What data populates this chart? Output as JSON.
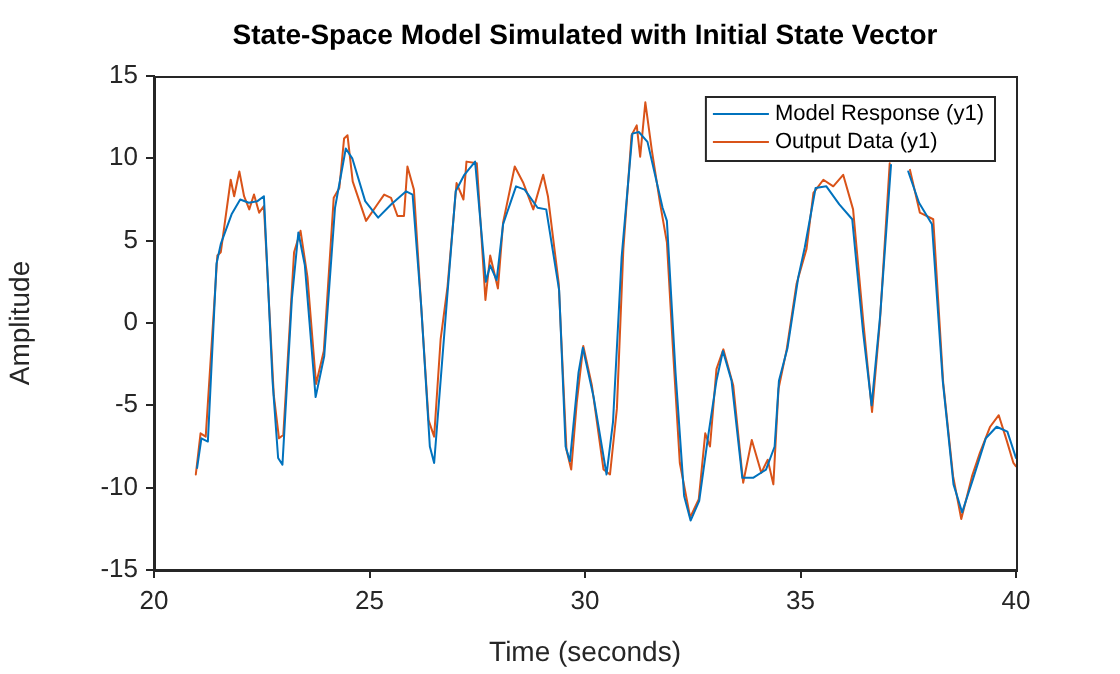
{
  "chart_data": {
    "type": "line",
    "title": "State-Space Model Simulated with Initial State Vector",
    "xlabel": "Time (seconds)",
    "ylabel": "Amplitude",
    "xlim": [
      20,
      40
    ],
    "xticks": [
      20,
      25,
      30,
      35,
      40
    ],
    "ylim": [
      -15,
      15
    ],
    "yticks": [
      -15,
      -10,
      -5,
      0,
      5,
      10,
      15
    ],
    "grid": false,
    "legend": "top right",
    "marker": "none",
    "line_style": "solid",
    "series": [
      {
        "name": "Model Response (y1)",
        "color": "#0072bd",
        "x": [
          21.0,
          21.1,
          21.25,
          21.45,
          21.55,
          21.8,
          22.0,
          22.2,
          22.4,
          22.55,
          22.75,
          22.88,
          22.98,
          23.2,
          23.35,
          23.5,
          23.75,
          23.95,
          24.2,
          24.45,
          24.6,
          24.9,
          25.2,
          25.5,
          25.85,
          26.0,
          26.2,
          26.4,
          26.5,
          26.8,
          27.0,
          27.2,
          27.45,
          27.7,
          27.8,
          27.95,
          28.1,
          28.4,
          28.6,
          28.9,
          29.1,
          29.4,
          29.55,
          29.65,
          29.85,
          29.95,
          30.2,
          30.5,
          30.65,
          30.85,
          31.1,
          31.25,
          31.45,
          31.8,
          31.9,
          32.1,
          32.3,
          32.45,
          32.65,
          32.85,
          33.05,
          33.2,
          33.4,
          33.65,
          33.9,
          34.2,
          34.4,
          34.5,
          34.7,
          34.95,
          35.1,
          35.35,
          35.6,
          35.9,
          36.2,
          36.45,
          36.65,
          36.85,
          37.1,
          37.3,
          37.5,
          37.75,
          38.05,
          38.3,
          38.55,
          38.75,
          39.0,
          39.3,
          39.55,
          39.8,
          40.0
        ],
        "values": [
          -8.8,
          -7.0,
          -7.2,
          3.6,
          4.8,
          6.6,
          7.5,
          7.3,
          7.4,
          7.7,
          -3.5,
          -8.2,
          -8.6,
          1.5,
          5.5,
          3.5,
          -4.5,
          -2.0,
          7.0,
          10.6,
          10.0,
          7.4,
          6.4,
          7.2,
          8.0,
          7.8,
          1.0,
          -7.5,
          -8.5,
          1.5,
          8.0,
          9.0,
          9.8,
          2.5,
          3.5,
          2.6,
          6.0,
          8.3,
          8.1,
          7.0,
          6.9,
          2.0,
          -7.5,
          -8.4,
          -3.0,
          -1.5,
          -4.5,
          -9.2,
          -6.0,
          4.0,
          11.5,
          11.6,
          11.0,
          7.0,
          6.2,
          -3.0,
          -10.5,
          -12.0,
          -10.8,
          -7.0,
          -3.5,
          -1.7,
          -3.5,
          -9.4,
          -9.4,
          -8.9,
          -7.5,
          -3.5,
          -1.5,
          2.8,
          4.6,
          8.2,
          8.3,
          7.2,
          6.3,
          -0.5,
          -5.0,
          0.5,
          9.6,
          null,
          9.2,
          7.3,
          6.0,
          -3.5,
          -9.8,
          -11.5,
          -9.5,
          -7.0,
          -6.3,
          -6.6,
          -8.2
        ]
      },
      {
        "name": "Output Data (y1)",
        "color": "#d95319",
        "x": [
          20.97,
          21.08,
          21.2,
          21.47,
          21.55,
          21.78,
          21.86,
          21.98,
          22.09,
          22.21,
          22.32,
          22.44,
          22.55,
          22.78,
          22.9,
          23.0,
          23.25,
          23.4,
          23.56,
          23.76,
          23.94,
          24.17,
          24.3,
          24.41,
          24.49,
          24.61,
          24.92,
          25.18,
          25.34,
          25.5,
          25.65,
          25.8,
          25.88,
          26.03,
          26.19,
          26.37,
          26.5,
          26.65,
          26.81,
          27.02,
          27.18,
          27.25,
          27.49,
          27.69,
          27.8,
          27.98,
          28.1,
          28.37,
          28.57,
          28.8,
          29.03,
          29.14,
          29.39,
          29.57,
          29.68,
          29.81,
          29.96,
          30.16,
          30.43,
          30.58,
          30.74,
          30.89,
          31.08,
          31.2,
          31.28,
          31.4,
          31.55,
          31.74,
          31.9,
          32.05,
          32.2,
          32.44,
          32.64,
          32.79,
          32.9,
          33.05,
          33.21,
          33.44,
          33.67,
          33.87,
          34.09,
          34.24,
          34.37,
          34.49,
          34.68,
          34.91,
          35.14,
          35.3,
          35.53,
          35.76,
          35.99,
          36.22,
          36.46,
          36.66,
          36.84,
          37.07,
          37.23,
          37.54,
          37.77,
          38.08,
          38.31,
          38.54,
          38.73,
          38.98,
          39.16,
          39.4,
          39.6,
          39.78,
          39.94,
          40.0
        ],
        "values": [
          -9.2,
          -6.7,
          -6.9,
          4.1,
          4.3,
          8.7,
          7.7,
          9.2,
          7.7,
          6.9,
          7.8,
          6.7,
          7.1,
          -4.4,
          -7.0,
          -6.8,
          4.3,
          5.6,
          2.8,
          -3.7,
          -1.7,
          7.6,
          8.2,
          11.2,
          11.4,
          8.6,
          6.2,
          7.2,
          7.8,
          7.6,
          6.5,
          6.5,
          9.5,
          8.1,
          1.4,
          -5.9,
          -6.9,
          -1.0,
          2.2,
          8.5,
          7.5,
          9.8,
          9.7,
          1.4,
          4.1,
          2.1,
          6.1,
          9.5,
          8.5,
          6.9,
          9.0,
          7.7,
          2.4,
          -7.7,
          -8.9,
          -4.8,
          -1.4,
          -3.8,
          -8.9,
          -9.2,
          -5.2,
          4.5,
          11.4,
          12.0,
          10.1,
          13.4,
          10.5,
          7.3,
          4.9,
          -2.0,
          -8.5,
          -11.8,
          -10.7,
          -6.7,
          -7.5,
          -2.8,
          -1.6,
          -3.8,
          -9.7,
          -7.1,
          -9.1,
          -8.3,
          -9.8,
          -4.0,
          -1.6,
          2.4,
          4.5,
          7.9,
          8.7,
          8.3,
          9.0,
          6.9,
          0.0,
          -5.4,
          0.0,
          9.7,
          null,
          9.3,
          6.7,
          6.3,
          -3.6,
          -9.3,
          -11.9,
          -9.3,
          -7.9,
          -6.3,
          -5.6,
          -7.1,
          -8.5,
          -8.7
        ]
      }
    ]
  }
}
